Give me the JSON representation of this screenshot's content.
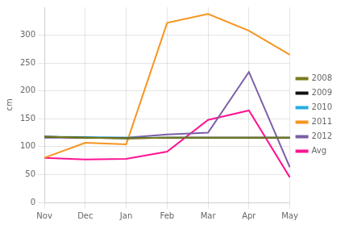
{
  "chart_data": {
    "type": "line",
    "ylabel": "cm",
    "categories": [
      "Nov",
      "Dec",
      "Jan",
      "Feb",
      "Mar",
      "Apr",
      "May"
    ],
    "series": [
      {
        "name": "2008",
        "color": "#7a7a1a",
        "values": [
          118,
          116,
          115,
          116,
          116,
          116,
          116
        ]
      },
      {
        "name": "2009",
        "color": "#111111",
        "values": [
          118,
          116,
          115,
          116,
          116,
          116,
          116
        ]
      },
      {
        "name": "2010",
        "color": "#29abe2",
        "values": [
          118,
          117,
          116,
          116,
          116,
          116,
          116
        ]
      },
      {
        "name": "2011",
        "color": "#f7941d",
        "values": [
          80,
          107,
          104,
          322,
          338,
          308,
          265
        ]
      },
      {
        "name": "2012",
        "color": "#7b5ea7",
        "values": [
          116,
          116,
          116,
          122,
          125,
          234,
          63
        ]
      },
      {
        "name": "Avg",
        "color": "#ff1493",
        "values": [
          80,
          77,
          78,
          91,
          148,
          165,
          45
        ]
      }
    ],
    "ylim": [
      0,
      350
    ],
    "yticks": [
      0,
      50,
      100,
      150,
      200,
      250,
      300
    ],
    "grid": true,
    "legend": "right"
  }
}
